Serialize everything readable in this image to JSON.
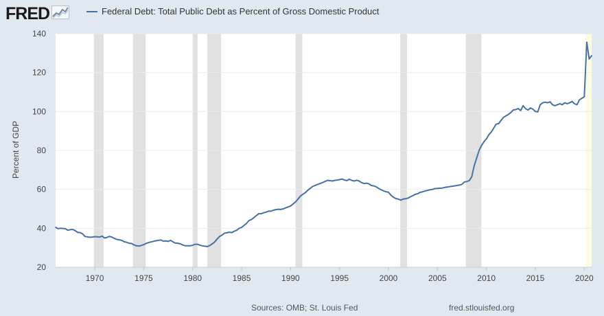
{
  "branding": {
    "logo_text": "FRED",
    "logo_icon": "chart-icon"
  },
  "legend": {
    "series_label": "Federal Debt: Total Public Debt as Percent of Gross Domestic Product"
  },
  "colors": {
    "series_line": "#4572a7",
    "background": "#e1e9f0",
    "plot_background": "#ffffff",
    "recession_shade": "#e1e1e1",
    "forecast_shade": "#fcfce3",
    "grid": "#e8ecf0"
  },
  "footer": {
    "sources": "Sources: OMB; St. Louis Fed",
    "url": "fred.stlouisfed.org"
  },
  "chart_data": {
    "type": "line",
    "ylabel": "Percent of GDP",
    "xlabel": "",
    "ylim": [
      20,
      140
    ],
    "yticks": [
      20,
      40,
      60,
      80,
      100,
      120,
      140
    ],
    "xlim": [
      1966,
      2020.75
    ],
    "xticks": [
      1970,
      1975,
      1980,
      1985,
      1990,
      1995,
      2000,
      2005,
      2010,
      2015,
      2020
    ],
    "grid": true,
    "recessions": [
      [
        1969.9,
        1970.9
      ],
      [
        1973.9,
        1975.2
      ],
      [
        1980.0,
        1980.5
      ],
      [
        1981.5,
        1982.9
      ],
      [
        1990.5,
        1991.2
      ],
      [
        2001.2,
        2001.9
      ],
      [
        2007.9,
        2009.5
      ]
    ],
    "shaded_2020": [
      2020.1,
      2020.75
    ],
    "series": [
      {
        "name": "Federal Debt: Total Public Debt as Percent of Gross Domestic Product",
        "points": [
          [
            1966.0,
            40.5
          ],
          [
            1966.25,
            39.8
          ],
          [
            1966.5,
            40.0
          ],
          [
            1966.75,
            39.9
          ],
          [
            1967.0,
            39.8
          ],
          [
            1967.25,
            39.0
          ],
          [
            1967.5,
            39.3
          ],
          [
            1967.75,
            39.4
          ],
          [
            1968.0,
            38.8
          ],
          [
            1968.25,
            37.9
          ],
          [
            1968.5,
            37.8
          ],
          [
            1968.75,
            37.2
          ],
          [
            1969.0,
            35.8
          ],
          [
            1969.25,
            35.6
          ],
          [
            1969.5,
            35.4
          ],
          [
            1969.75,
            35.5
          ],
          [
            1970.0,
            35.7
          ],
          [
            1970.25,
            35.6
          ],
          [
            1970.5,
            35.5
          ],
          [
            1970.75,
            36.0
          ],
          [
            1971.0,
            35.0
          ],
          [
            1971.25,
            35.3
          ],
          [
            1971.5,
            35.8
          ],
          [
            1971.75,
            35.5
          ],
          [
            1972.0,
            34.8
          ],
          [
            1972.25,
            34.3
          ],
          [
            1972.5,
            34.1
          ],
          [
            1972.75,
            33.8
          ],
          [
            1973.0,
            33.1
          ],
          [
            1973.25,
            32.8
          ],
          [
            1973.5,
            32.3
          ],
          [
            1973.75,
            32.2
          ],
          [
            1974.0,
            31.5
          ],
          [
            1974.25,
            31.0
          ],
          [
            1974.5,
            30.9
          ],
          [
            1974.75,
            31.2
          ],
          [
            1975.0,
            31.6
          ],
          [
            1975.25,
            32.2
          ],
          [
            1975.5,
            32.7
          ],
          [
            1975.75,
            33.0
          ],
          [
            1976.0,
            33.3
          ],
          [
            1976.25,
            33.6
          ],
          [
            1976.5,
            33.8
          ],
          [
            1976.75,
            34.0
          ],
          [
            1977.0,
            33.4
          ],
          [
            1977.25,
            33.5
          ],
          [
            1977.5,
            33.3
          ],
          [
            1977.75,
            33.8
          ],
          [
            1978.0,
            33.0
          ],
          [
            1978.25,
            32.4
          ],
          [
            1978.5,
            32.3
          ],
          [
            1978.75,
            32.0
          ],
          [
            1979.0,
            31.4
          ],
          [
            1979.25,
            31.0
          ],
          [
            1979.5,
            31.0
          ],
          [
            1979.75,
            31.0
          ],
          [
            1980.0,
            31.3
          ],
          [
            1980.25,
            31.8
          ],
          [
            1980.5,
            31.8
          ],
          [
            1980.75,
            31.3
          ],
          [
            1981.0,
            31.0
          ],
          [
            1981.25,
            30.8
          ],
          [
            1981.5,
            30.6
          ],
          [
            1981.75,
            31.2
          ],
          [
            1982.0,
            32.0
          ],
          [
            1982.25,
            33.0
          ],
          [
            1982.5,
            34.5
          ],
          [
            1982.75,
            35.8
          ],
          [
            1983.0,
            36.5
          ],
          [
            1983.25,
            37.5
          ],
          [
            1983.5,
            37.7
          ],
          [
            1983.75,
            38.0
          ],
          [
            1984.0,
            37.8
          ],
          [
            1984.25,
            38.5
          ],
          [
            1984.5,
            39.0
          ],
          [
            1984.75,
            40.0
          ],
          [
            1985.0,
            40.5
          ],
          [
            1985.25,
            41.5
          ],
          [
            1985.5,
            42.5
          ],
          [
            1985.75,
            44.0
          ],
          [
            1986.0,
            44.5
          ],
          [
            1986.25,
            45.5
          ],
          [
            1986.5,
            46.5
          ],
          [
            1986.75,
            47.5
          ],
          [
            1987.0,
            47.5
          ],
          [
            1987.25,
            48.0
          ],
          [
            1987.5,
            48.3
          ],
          [
            1987.75,
            48.8
          ],
          [
            1988.0,
            48.8
          ],
          [
            1988.25,
            49.3
          ],
          [
            1988.5,
            49.6
          ],
          [
            1988.75,
            49.8
          ],
          [
            1989.0,
            49.7
          ],
          [
            1989.25,
            50.0
          ],
          [
            1989.5,
            50.5
          ],
          [
            1989.75,
            51.0
          ],
          [
            1990.0,
            51.5
          ],
          [
            1990.25,
            52.5
          ],
          [
            1990.5,
            53.5
          ],
          [
            1990.75,
            55.0
          ],
          [
            1991.0,
            56.5
          ],
          [
            1991.25,
            57.5
          ],
          [
            1991.5,
            58.3
          ],
          [
            1991.75,
            59.5
          ],
          [
            1992.0,
            60.5
          ],
          [
            1992.25,
            61.5
          ],
          [
            1992.5,
            62.0
          ],
          [
            1992.75,
            62.5
          ],
          [
            1993.0,
            63.0
          ],
          [
            1993.25,
            63.5
          ],
          [
            1993.5,
            64.0
          ],
          [
            1993.75,
            64.6
          ],
          [
            1994.0,
            64.5
          ],
          [
            1994.25,
            64.3
          ],
          [
            1994.5,
            64.6
          ],
          [
            1994.75,
            64.8
          ],
          [
            1995.0,
            65.0
          ],
          [
            1995.25,
            65.3
          ],
          [
            1995.5,
            64.8
          ],
          [
            1995.75,
            64.5
          ],
          [
            1996.0,
            65.2
          ],
          [
            1996.25,
            64.6
          ],
          [
            1996.5,
            64.3
          ],
          [
            1996.75,
            64.7
          ],
          [
            1997.0,
            64.3
          ],
          [
            1997.25,
            63.5
          ],
          [
            1997.5,
            63.0
          ],
          [
            1997.75,
            63.2
          ],
          [
            1998.0,
            62.8
          ],
          [
            1998.25,
            62.0
          ],
          [
            1998.5,
            61.8
          ],
          [
            1998.75,
            61.3
          ],
          [
            1999.0,
            60.5
          ],
          [
            1999.25,
            59.8
          ],
          [
            1999.5,
            59.2
          ],
          [
            1999.75,
            58.8
          ],
          [
            2000.0,
            58.5
          ],
          [
            2000.25,
            57.0
          ],
          [
            2000.5,
            56.0
          ],
          [
            2000.75,
            55.3
          ],
          [
            2001.0,
            55.0
          ],
          [
            2001.25,
            54.5
          ],
          [
            2001.5,
            55.0
          ],
          [
            2001.75,
            55.2
          ],
          [
            2002.0,
            55.5
          ],
          [
            2002.25,
            56.2
          ],
          [
            2002.5,
            56.8
          ],
          [
            2002.75,
            57.5
          ],
          [
            2003.0,
            57.8
          ],
          [
            2003.25,
            58.5
          ],
          [
            2003.5,
            58.8
          ],
          [
            2003.75,
            59.2
          ],
          [
            2004.0,
            59.5
          ],
          [
            2004.25,
            59.8
          ],
          [
            2004.5,
            60.0
          ],
          [
            2004.75,
            60.4
          ],
          [
            2005.0,
            60.5
          ],
          [
            2005.25,
            60.6
          ],
          [
            2005.5,
            60.7
          ],
          [
            2005.75,
            61.0
          ],
          [
            2006.0,
            61.2
          ],
          [
            2006.25,
            61.4
          ],
          [
            2006.5,
            61.6
          ],
          [
            2006.75,
            61.8
          ],
          [
            2007.0,
            62.0
          ],
          [
            2007.25,
            62.2
          ],
          [
            2007.5,
            62.6
          ],
          [
            2007.75,
            63.8
          ],
          [
            2008.0,
            64.0
          ],
          [
            2008.25,
            64.5
          ],
          [
            2008.5,
            66.5
          ],
          [
            2008.75,
            72.0
          ],
          [
            2009.0,
            76.0
          ],
          [
            2009.25,
            80.0
          ],
          [
            2009.5,
            82.5
          ],
          [
            2009.75,
            84.5
          ],
          [
            2010.0,
            86.0
          ],
          [
            2010.25,
            88.0
          ],
          [
            2010.5,
            89.5
          ],
          [
            2010.75,
            91.5
          ],
          [
            2011.0,
            93.5
          ],
          [
            2011.25,
            93.8
          ],
          [
            2011.5,
            95.5
          ],
          [
            2011.75,
            97.0
          ],
          [
            2012.0,
            97.8
          ],
          [
            2012.25,
            98.5
          ],
          [
            2012.5,
            99.5
          ],
          [
            2012.75,
            100.8
          ],
          [
            2013.0,
            101.0
          ],
          [
            2013.25,
            101.5
          ],
          [
            2013.5,
            100.5
          ],
          [
            2013.75,
            103.0
          ],
          [
            2014.0,
            101.5
          ],
          [
            2014.25,
            100.8
          ],
          [
            2014.5,
            101.8
          ],
          [
            2014.75,
            101.2
          ],
          [
            2015.0,
            100.0
          ],
          [
            2015.25,
            99.8
          ],
          [
            2015.5,
            103.5
          ],
          [
            2015.75,
            104.5
          ],
          [
            2016.0,
            104.8
          ],
          [
            2016.25,
            104.5
          ],
          [
            2016.5,
            105.0
          ],
          [
            2016.75,
            103.5
          ],
          [
            2017.0,
            103.0
          ],
          [
            2017.25,
            103.5
          ],
          [
            2017.5,
            104.0
          ],
          [
            2017.75,
            103.5
          ],
          [
            2018.0,
            104.5
          ],
          [
            2018.25,
            104.0
          ],
          [
            2018.5,
            104.5
          ],
          [
            2018.75,
            105.2
          ],
          [
            2019.0,
            104.0
          ],
          [
            2019.25,
            103.5
          ],
          [
            2019.5,
            106.0
          ],
          [
            2019.75,
            106.8
          ],
          [
            2020.0,
            107.6
          ],
          [
            2020.25,
            135.6
          ],
          [
            2020.5,
            127.0
          ],
          [
            2020.75,
            128.7
          ]
        ]
      }
    ]
  }
}
